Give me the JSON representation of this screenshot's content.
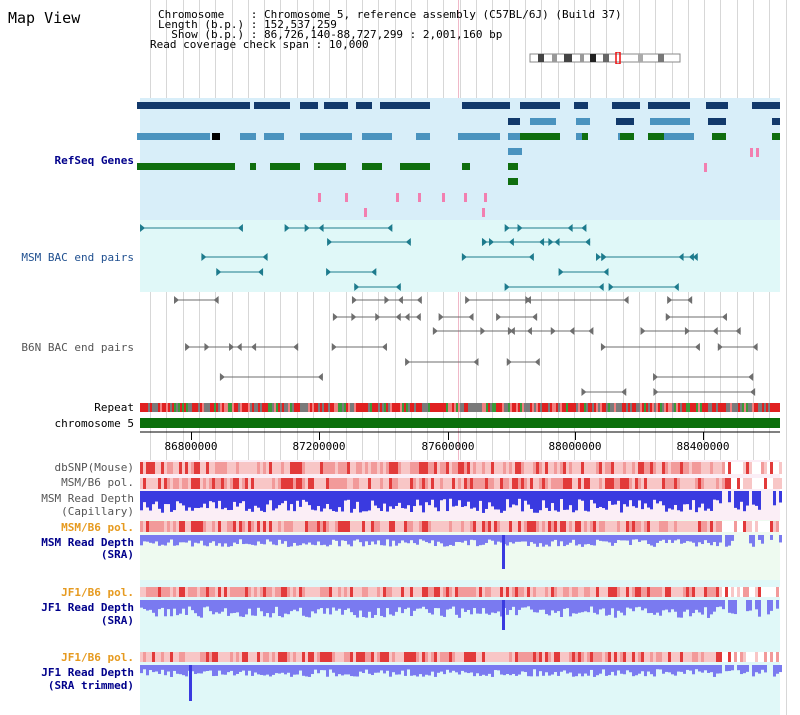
{
  "header": {
    "title": "Map View",
    "chromosome_label": "Chromosome",
    "chromosome_value": "Chromosome 5, reference assembly (C57BL/6J) (Build 37)",
    "length_label": "Length (b.p.)",
    "length_value": "152,537,259",
    "show_label": "Show (b.p.)",
    "show_value": "86,726,140-88,727,299 : 2,001,160 bp",
    "coverage_label": "Read coverage check span",
    "coverage_value": "10,000"
  },
  "tracks": {
    "refseq": "RefSeq Genes",
    "msm_bac": "MSM BAC end pairs",
    "b6n_bac": "B6N BAC end pairs",
    "repeat": "Repeat",
    "chromosome": "chromosome 5",
    "dbsnp": "dbSNP(Mouse)",
    "msm_b6_pol": "MSM/B6 pol.",
    "msm_read_depth_cap_1": "MSM Read Depth",
    "msm_read_depth_cap_2": "(Capillary)",
    "msm_b6_pol_2": "MSM/B6 pol.",
    "msm_read_depth_sra_1": "MSM Read Depth",
    "msm_read_depth_sra_2": "(SRA)",
    "jf1_b6_pol_1": "JF1/B6 pol.",
    "jf1_read_depth_1": "JF1 Read Depth",
    "jf1_read_depth_2": "(SRA)",
    "jf1_b6_pol_2": "JF1/B6 pol.",
    "jf1_trim_1": "JF1 Read Depth",
    "jf1_trim_2": "(SRA trimmed)"
  },
  "axis": {
    "ticks": [
      "86800000",
      "87200000",
      "87600000",
      "88000000",
      "88400000"
    ]
  },
  "colors": {
    "refseq_bg": "#d8eef9",
    "msm_bg": "#e0f8f8",
    "gene_dark": "#12396b",
    "gene_mid": "#4a93bf",
    "gene_green": "#0f6e0f",
    "bac_teal": "#1d7b8d",
    "bac_gray": "#6e6e6e",
    "chromosome_green": "#0b6f0b",
    "depth_blue": "#3a3ae0",
    "depth_light": "#7a7af0",
    "pol_red": "#e23a3a"
  }
}
